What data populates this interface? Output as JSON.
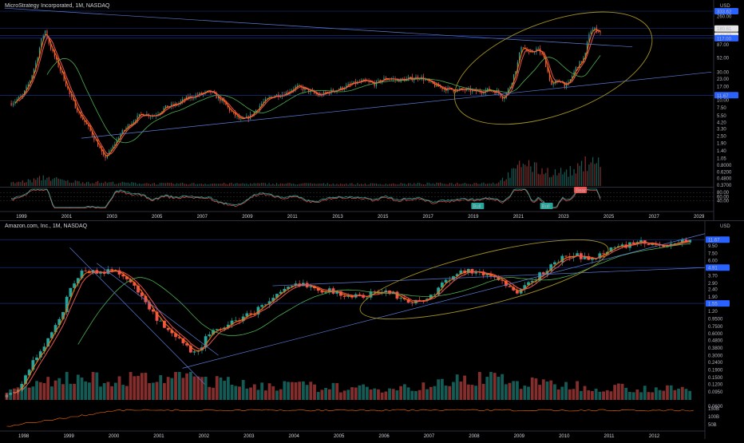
{
  "chart_data": [
    {
      "type": "line",
      "title": "MicroStrategy Incorporated, 1M, NASDAQ",
      "currency": "USD",
      "y_scale": "log",
      "ylim": [
        0.37,
        320
      ],
      "xlim": [
        1998.0,
        2029.6
      ],
      "y_tick_labels": [
        {
          "v": 260,
          "t": "260.00"
        },
        {
          "v": 87,
          "t": "87.00"
        },
        {
          "v": 52,
          "t": "52.00"
        },
        {
          "v": 30,
          "t": "30.00"
        },
        {
          "v": 23,
          "t": "23.00"
        },
        {
          "v": 17,
          "t": "17.00"
        },
        {
          "v": 10,
          "t": "10.00"
        },
        {
          "v": 7.5,
          "t": "7.50"
        },
        {
          "v": 5.5,
          "t": "5.50"
        },
        {
          "v": 4.2,
          "t": "4.20"
        },
        {
          "v": 3.3,
          "t": "3.30"
        },
        {
          "v": 2.5,
          "t": "2.50"
        },
        {
          "v": 1.9,
          "t": "1.90"
        },
        {
          "v": 1.4,
          "t": "1.40"
        },
        {
          "v": 1.05,
          "t": "1.05"
        },
        {
          "v": 0.8,
          "t": "0.8000"
        },
        {
          "v": 0.62,
          "t": "0.6200"
        },
        {
          "v": 0.48,
          "t": "0.4800"
        },
        {
          "v": 0.37,
          "t": "0.3700"
        }
      ],
      "price_badges": [
        {
          "v": 320,
          "t": "333.62",
          "color": "#2962ff"
        },
        {
          "v": 163,
          "t": "180.61",
          "color": "#e6e6e6"
        },
        {
          "v": 124,
          "t": "146.57",
          "color": "#e6e6e6"
        },
        {
          "v": 112,
          "t": "117.00",
          "color": "#2962ff"
        },
        {
          "v": 12.2,
          "t": "11.67",
          "color": "#2962ff"
        }
      ],
      "x_tick_labels": [
        {
          "v": 1999,
          "t": "1999"
        },
        {
          "v": 2001,
          "t": "2001"
        },
        {
          "v": 2003,
          "t": "2003"
        },
        {
          "v": 2005,
          "t": "2005"
        },
        {
          "v": 2007,
          "t": "2007"
        },
        {
          "v": 2009,
          "t": "2009"
        },
        {
          "v": 2011,
          "t": "2011"
        },
        {
          "v": 2013,
          "t": "2013"
        },
        {
          "v": 2015,
          "t": "2015"
        },
        {
          "v": 2017,
          "t": "2017"
        },
        {
          "v": 2019,
          "t": "2019"
        },
        {
          "v": 2021,
          "t": "2021"
        },
        {
          "v": 2023,
          "t": "2023"
        },
        {
          "v": 2025,
          "t": "2025"
        },
        {
          "v": 2027,
          "t": "2027"
        },
        {
          "v": 2029,
          "t": "2029"
        }
      ],
      "price_anchors": [
        [
          1998.5,
          9
        ],
        [
          1999.0,
          12
        ],
        [
          1999.3,
          20
        ],
        [
          1999.6,
          45
        ],
        [
          1999.85,
          110
        ],
        [
          2000.0,
          150
        ],
        [
          2000.2,
          85
        ],
        [
          2000.5,
          45
        ],
        [
          2000.8,
          25
        ],
        [
          2001.1,
          12
        ],
        [
          2001.5,
          6
        ],
        [
          2001.9,
          3.5
        ],
        [
          2002.3,
          1.9
        ],
        [
          2002.6,
          1.05
        ],
        [
          2002.9,
          1.4
        ],
        [
          2003.3,
          2.6
        ],
        [
          2003.8,
          4.2
        ],
        [
          2004.3,
          6
        ],
        [
          2004.8,
          5.5
        ],
        [
          2005.3,
          7.5
        ],
        [
          2005.8,
          8.5
        ],
        [
          2006.3,
          11
        ],
        [
          2006.8,
          12.5
        ],
        [
          2007.3,
          14
        ],
        [
          2007.8,
          10
        ],
        [
          2008.3,
          6
        ],
        [
          2008.7,
          4.5
        ],
        [
          2009.1,
          5.5
        ],
        [
          2009.6,
          9
        ],
        [
          2010.1,
          12
        ],
        [
          2010.6,
          13
        ],
        [
          2011.1,
          17
        ],
        [
          2011.6,
          15
        ],
        [
          2012.1,
          12
        ],
        [
          2012.6,
          14
        ],
        [
          2013.1,
          16
        ],
        [
          2013.6,
          19
        ],
        [
          2014.1,
          21
        ],
        [
          2014.6,
          19
        ],
        [
          2015.1,
          24
        ],
        [
          2015.6,
          22
        ],
        [
          2016.1,
          23
        ],
        [
          2016.6,
          25
        ],
        [
          2017.1,
          19
        ],
        [
          2017.6,
          16
        ],
        [
          2018.1,
          15
        ],
        [
          2018.6,
          15
        ],
        [
          2019.1,
          14
        ],
        [
          2019.6,
          15
        ],
        [
          2020.0,
          14
        ],
        [
          2020.3,
          11
        ],
        [
          2020.6,
          18
        ],
        [
          2020.9,
          40
        ],
        [
          2021.1,
          90
        ],
        [
          2021.4,
          60
        ],
        [
          2021.8,
          75
        ],
        [
          2022.1,
          50
        ],
        [
          2022.4,
          18
        ],
        [
          2022.8,
          22
        ],
        [
          2023.1,
          17
        ],
        [
          2023.5,
          35
        ],
        [
          2023.9,
          55
        ],
        [
          2024.1,
          150
        ],
        [
          2024.4,
          160
        ],
        [
          2024.6,
          140
        ]
      ],
      "volume_anchors": [
        [
          1998.5,
          0.1
        ],
        [
          1999.5,
          0.2
        ],
        [
          2000.0,
          0.3
        ],
        [
          2001.0,
          0.15
        ],
        [
          2002.5,
          0.12
        ],
        [
          2005.0,
          0.08
        ],
        [
          2010.0,
          0.08
        ],
        [
          2015.0,
          0.07
        ],
        [
          2020.0,
          0.1
        ],
        [
          2020.9,
          0.55
        ],
        [
          2021.2,
          0.9
        ],
        [
          2021.6,
          0.6
        ],
        [
          2022.5,
          0.45
        ],
        [
          2023.5,
          0.5
        ],
        [
          2024.0,
          0.85
        ],
        [
          2024.2,
          1.0
        ],
        [
          2024.6,
          0.7
        ]
      ],
      "oscillator": {
        "levels": [
          {
            "v": 80,
            "t": "80.00"
          },
          {
            "v": 60,
            "t": "60.00"
          },
          {
            "v": 40,
            "t": "40.00"
          }
        ],
        "labels": [
          {
            "x": 2019.15,
            "t": "Bull",
            "color": "#26a69a"
          },
          {
            "x": 2022.2,
            "t": "Bull",
            "color": "#26a69a"
          },
          {
            "x": 2023.7,
            "t": "Bear",
            "color": "#ef5350"
          }
        ]
      }
    },
    {
      "type": "line",
      "title": "Amazon.com, Inc., 1M, NASDAQ",
      "currency": "USD",
      "y_scale": "log",
      "ylim": [
        0.048,
        15
      ],
      "xlim": [
        1997.45,
        2013.1
      ],
      "y_tick_labels": [
        {
          "v": 9.5,
          "t": "9.50"
        },
        {
          "v": 7.5,
          "t": "7.50"
        },
        {
          "v": 6.0,
          "t": "6.00"
        },
        {
          "v": 3.7,
          "t": "3.70"
        },
        {
          "v": 2.9,
          "t": "2.90"
        },
        {
          "v": 2.4,
          "t": "2.40"
        },
        {
          "v": 1.9,
          "t": "1.90"
        },
        {
          "v": 1.2,
          "t": "1.20"
        },
        {
          "v": 0.95,
          "t": "0.9500"
        },
        {
          "v": 0.75,
          "t": "0.7500"
        },
        {
          "v": 0.6,
          "t": "0.6000"
        },
        {
          "v": 0.48,
          "t": "0.4800"
        },
        {
          "v": 0.38,
          "t": "0.3800"
        },
        {
          "v": 0.3,
          "t": "0.3000"
        },
        {
          "v": 0.24,
          "t": "0.2400"
        },
        {
          "v": 0.19,
          "t": "0.1900"
        },
        {
          "v": 0.15,
          "t": "0.1500"
        },
        {
          "v": 0.12,
          "t": "0.1200"
        },
        {
          "v": 0.095,
          "t": "0.0950"
        },
        {
          "v": 0.06,
          "t": "0.0600"
        }
      ],
      "price_badges": [
        {
          "v": 11.6,
          "t": "11.67",
          "color": "#2962ff"
        },
        {
          "v": 4.8,
          "t": "4.91",
          "color": "#2962ff"
        },
        {
          "v": 1.55,
          "t": "1.55",
          "color": "#2962ff"
        }
      ],
      "x_tick_labels": [
        {
          "v": 1998,
          "t": "1998"
        },
        {
          "v": 1999,
          "t": "1999"
        },
        {
          "v": 2000,
          "t": "2000"
        },
        {
          "v": 2001,
          "t": "2001"
        },
        {
          "v": 2002,
          "t": "2002"
        },
        {
          "v": 2003,
          "t": "2003"
        },
        {
          "v": 2004,
          "t": "2004"
        },
        {
          "v": 2005,
          "t": "2005"
        },
        {
          "v": 2006,
          "t": "2006"
        },
        {
          "v": 2007,
          "t": "2007"
        },
        {
          "v": 2008,
          "t": "2008"
        },
        {
          "v": 2009,
          "t": "2009"
        },
        {
          "v": 2010,
          "t": "2010"
        },
        {
          "v": 2011,
          "t": "2011"
        },
        {
          "v": 2012,
          "t": "2012"
        }
      ],
      "volume_axis_labels": [
        {
          "t": "150B"
        },
        {
          "t": "100B"
        },
        {
          "t": "50B"
        }
      ],
      "price_anchors": [
        [
          1997.6,
          0.08
        ],
        [
          1997.9,
          0.11
        ],
        [
          1998.2,
          0.25
        ],
        [
          1998.5,
          0.5
        ],
        [
          1998.8,
          1.0
        ],
        [
          1999.0,
          2.5
        ],
        [
          1999.3,
          4.5
        ],
        [
          1999.7,
          4.0
        ],
        [
          1999.95,
          4.6
        ],
        [
          2000.2,
          3.8
        ],
        [
          2000.5,
          2.3
        ],
        [
          2000.8,
          1.2
        ],
        [
          2001.2,
          0.6
        ],
        [
          2001.5,
          0.45
        ],
        [
          2001.8,
          0.3
        ],
        [
          2002.0,
          0.5
        ],
        [
          2002.3,
          0.7
        ],
        [
          2002.7,
          0.9
        ],
        [
          2003.1,
          1.2
        ],
        [
          2003.5,
          1.8
        ],
        [
          2003.9,
          2.6
        ],
        [
          2004.2,
          2.9
        ],
        [
          2004.6,
          2.4
        ],
        [
          2004.9,
          2.2
        ],
        [
          2005.3,
          1.9
        ],
        [
          2005.7,
          2.1
        ],
        [
          2006.0,
          2.3
        ],
        [
          2006.4,
          1.8
        ],
        [
          2006.7,
          1.6
        ],
        [
          2007.0,
          1.9
        ],
        [
          2007.4,
          3.5
        ],
        [
          2007.8,
          4.5
        ],
        [
          2008.1,
          4.0
        ],
        [
          2008.5,
          3.5
        ],
        [
          2008.8,
          2.5
        ],
        [
          2008.95,
          2.0
        ],
        [
          2009.2,
          3.0
        ],
        [
          2009.6,
          4.5
        ],
        [
          2009.9,
          6.5
        ],
        [
          2010.3,
          7.0
        ],
        [
          2010.6,
          6.0
        ],
        [
          2010.9,
          8.5
        ],
        [
          2011.3,
          9.5
        ],
        [
          2011.7,
          10.5
        ],
        [
          2012.0,
          9.5
        ],
        [
          2012.4,
          10.5
        ],
        [
          2012.8,
          11.5
        ]
      ],
      "volume_anchors": [
        [
          1997.6,
          0.3
        ],
        [
          1998.5,
          0.6
        ],
        [
          1999.0,
          0.9
        ],
        [
          1999.5,
          0.8
        ],
        [
          2000.5,
          0.7
        ],
        [
          2001.5,
          0.9
        ],
        [
          2002.5,
          0.6
        ],
        [
          2004.0,
          0.5
        ],
        [
          2005.5,
          0.4
        ],
        [
          2007.0,
          0.5
        ],
        [
          2008.3,
          0.9
        ],
        [
          2009.0,
          0.6
        ],
        [
          2010.5,
          0.5
        ],
        [
          2012.0,
          0.4
        ],
        [
          2012.8,
          0.35
        ]
      ]
    }
  ]
}
